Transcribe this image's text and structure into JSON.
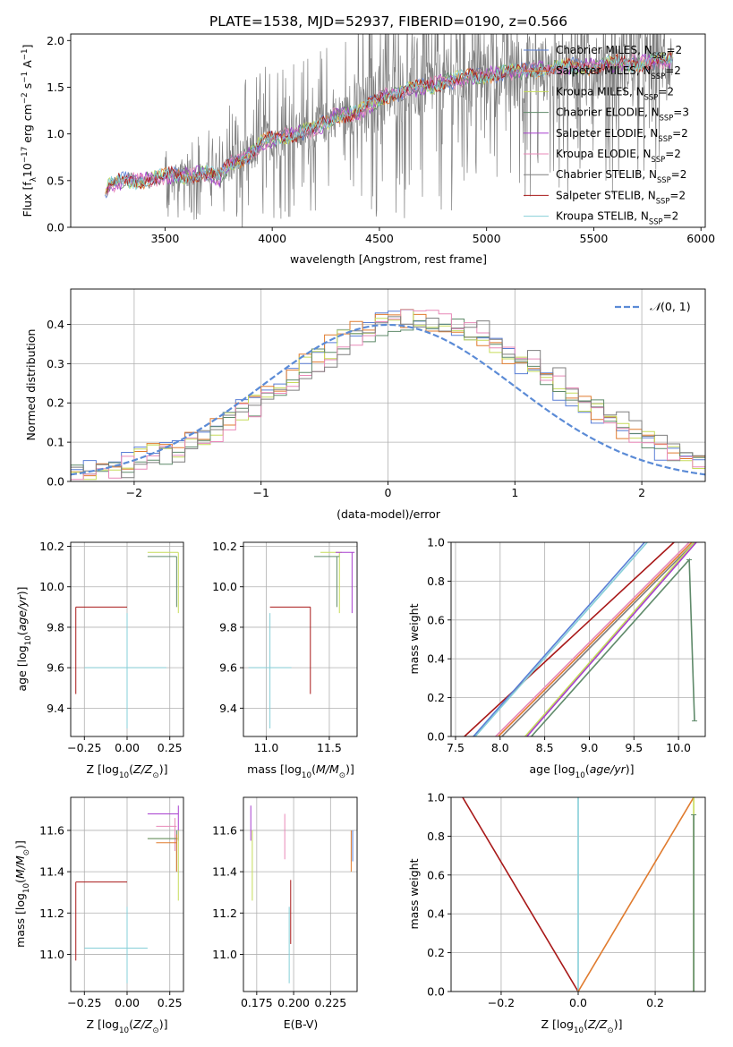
{
  "figure": {
    "title": "PLATE=1538, MJD=52937, FIBERID=0190, z=0.566"
  },
  "colors": {
    "chabrier_miles": "#5a7fd6",
    "salpeter_miles": "#e07b2e",
    "kroupa_miles": "#c6dc5a",
    "chabrier_elodie": "#5f8a6a",
    "salpeter_elodie": "#a83fcf",
    "kroupa_elodie": "#e889b8",
    "chabrier_stelib": "#7f7f7f",
    "salpeter_stelib": "#a81818",
    "kroupa_stelib": "#86cfd8",
    "gaussian": "#5b8bd6"
  },
  "chart_data": [
    {
      "id": "spectrum",
      "type": "line",
      "xlabel": "wavelength [Angstrom, rest frame]",
      "ylabel": "Flux [f_λ 10^-17 erg cm^-2 s^-1 A^-1]",
      "xlim": [
        3060,
        6020
      ],
      "ylim": [
        0,
        2.07
      ],
      "xticks": [
        3500,
        4000,
        4500,
        5000,
        5500,
        6000
      ],
      "yticks": [
        0.0,
        0.5,
        1.0,
        1.5,
        2.0
      ],
      "xtick_labels": [
        "3500",
        "4000",
        "4500",
        "5000",
        "5500",
        "6000"
      ],
      "ytick_labels": [
        "0.0",
        "0.5",
        "1.0",
        "1.5",
        "2.0"
      ],
      "grid": false,
      "legend_position": "top-right",
      "data_range": [
        3220,
        5870
      ],
      "model_continuum": {
        "x": [
          3220,
          3240,
          3300,
          3400,
          3450,
          3500,
          3600,
          3700,
          3750,
          3800,
          3900,
          3950,
          4000,
          4100,
          4200,
          4300,
          4400,
          4500,
          4600,
          4700,
          4800,
          4900,
          5000,
          5100,
          5200,
          5300,
          5400,
          5500,
          5600,
          5700,
          5800,
          5870
        ],
        "y": [
          0.33,
          0.45,
          0.5,
          0.5,
          0.52,
          0.55,
          0.56,
          0.58,
          0.52,
          0.68,
          0.78,
          0.9,
          0.95,
          1.0,
          1.05,
          1.2,
          1.22,
          1.38,
          1.45,
          1.5,
          1.55,
          1.6,
          1.63,
          1.66,
          1.68,
          1.7,
          1.72,
          1.72,
          1.75,
          1.76,
          1.78,
          1.8
        ]
      },
      "series": [
        {
          "name": "Chabrier MILES, N_SSP=2",
          "label": "Chabrier MILES, N",
          "sub": "SSP",
          "suffix": "=2",
          "color_key": "chabrier_miles"
        },
        {
          "name": "Salpeter MILES, N_SSP=2",
          "label": "Salpeter MILES, N",
          "sub": "SSP",
          "suffix": "=2",
          "color_key": "salpeter_miles"
        },
        {
          "name": "Kroupa MILES, N_SSP=2",
          "label": "Kroupa MILES, N",
          "sub": "SSP",
          "suffix": "=2",
          "color_key": "kroupa_miles"
        },
        {
          "name": "Chabrier ELODIE, N_SSP=3",
          "label": "Chabrier ELODIE, N",
          "sub": "SSP",
          "suffix": "=3",
          "color_key": "chabrier_elodie"
        },
        {
          "name": "Salpeter ELODIE, N_SSP=2",
          "label": "Salpeter ELODIE, N",
          "sub": "SSP",
          "suffix": "=2",
          "color_key": "salpeter_elodie"
        },
        {
          "name": "Kroupa ELODIE, N_SSP=2",
          "label": "Kroupa ELODIE, N",
          "sub": "SSP",
          "suffix": "=2",
          "color_key": "kroupa_elodie"
        },
        {
          "name": "Chabrier STELIB, N_SSP=2",
          "label": "Chabrier STELIB, N",
          "sub": "SSP",
          "suffix": "=2",
          "color_key": "chabrier_stelib"
        },
        {
          "name": "Salpeter STELIB, N_SSP=2",
          "label": "Salpeter STELIB, N",
          "sub": "SSP",
          "suffix": "=2",
          "color_key": "salpeter_stelib"
        },
        {
          "name": "Kroupa STELIB, N_SSP=2",
          "label": "Kroupa STELIB, N",
          "sub": "SSP",
          "suffix": "=2",
          "color_key": "kroupa_stelib"
        }
      ]
    },
    {
      "id": "residuals",
      "type": "line",
      "xlabel": "(data-model)/error",
      "ylabel": "Normed distribution",
      "xlim": [
        -2.5,
        2.5
      ],
      "ylim": [
        0,
        0.49
      ],
      "xticks": [
        -2,
        -1,
        0,
        1,
        2
      ],
      "yticks": [
        0.0,
        0.1,
        0.2,
        0.3,
        0.4
      ],
      "xtick_labels": [
        "−2",
        "−1",
        "0",
        "1",
        "2"
      ],
      "ytick_labels": [
        "0.0",
        "0.1",
        "0.2",
        "0.3",
        "0.4"
      ],
      "grid": true,
      "legend_position": "top-right",
      "bins": 50,
      "gaussian": {
        "name": "N(0,1)",
        "mean": 0,
        "sigma": 1,
        "label_main": "𝒩",
        "label_args": "(0, 1)"
      },
      "histogram_colors": [
        "chabrier_miles",
        "salpeter_miles",
        "kroupa_miles",
        "chabrier_elodie",
        "kroupa_elodie",
        "chabrier_stelib"
      ]
    },
    {
      "id": "z_vs_age",
      "type": "scatter",
      "xlabel": "Z [log10(Z/Z_sun)]",
      "ylabel": "age [log10(age/yr)]",
      "xlim": [
        -0.33,
        0.33
      ],
      "ylim": [
        9.26,
        10.22
      ],
      "xticks": [
        -0.25,
        0.0,
        0.25
      ],
      "yticks": [
        9.4,
        9.6,
        9.8,
        10.0,
        10.2
      ],
      "xtick_labels": [
        "−0.25",
        "0.00",
        "0.25"
      ],
      "ytick_labels": [
        "9.4",
        "9.6",
        "9.8",
        "10.0",
        "10.2"
      ],
      "grid": true,
      "errorbars": [
        {
          "color_key": "kroupa_stelib",
          "x0": -0.25,
          "x1": 0.23,
          "xc": 0.0,
          "y": 9.6,
          "y0": 9.3,
          "y1": 9.87
        },
        {
          "color_key": "salpeter_stelib",
          "x0": -0.3,
          "x1": 0.0,
          "xc": -0.3,
          "y": 9.9,
          "y0": 9.47,
          "y1": 9.9
        },
        {
          "color_key": "kroupa_miles",
          "x0": 0.12,
          "x1": 0.3,
          "xc": 0.3,
          "y": 10.17,
          "y0": 9.87,
          "y1": 10.17
        },
        {
          "color_key": "chabrier_elodie",
          "x0": 0.12,
          "x1": 0.29,
          "xc": 0.29,
          "y": 10.15,
          "y0": 9.9,
          "y1": 10.15
        }
      ]
    },
    {
      "id": "mass_vs_age",
      "type": "scatter",
      "xlabel": "mass [log10(M/M_sun)]",
      "ylabel": "",
      "xlim": [
        10.82,
        11.72
      ],
      "ylim": [
        9.26,
        10.22
      ],
      "xticks": [
        11.0,
        11.5
      ],
      "yticks": [
        9.4,
        9.6,
        9.8,
        10.0,
        10.2
      ],
      "xtick_labels": [
        "11.0",
        "11.5"
      ],
      "ytick_labels": [
        "9.4",
        "9.6",
        "9.8",
        "10.0",
        "10.2"
      ],
      "grid": true,
      "errorbars": [
        {
          "color_key": "kroupa_stelib",
          "x0": 10.86,
          "x1": 11.2,
          "xc": 11.03,
          "y": 9.6,
          "y0": 9.3,
          "y1": 9.87
        },
        {
          "color_key": "salpeter_stelib",
          "x0": 11.03,
          "x1": 11.35,
          "xc": 11.35,
          "y": 9.9,
          "y0": 9.47,
          "y1": 9.9
        },
        {
          "color_key": "kroupa_miles",
          "x0": 11.43,
          "x1": 11.6,
          "xc": 11.58,
          "y": 10.17,
          "y0": 9.87,
          "y1": 10.17
        },
        {
          "color_key": "chabrier_elodie",
          "x0": 11.38,
          "x1": 11.58,
          "xc": 11.56,
          "y": 10.15,
          "y0": 9.9,
          "y1": 10.15
        },
        {
          "color_key": "salpeter_elodie",
          "x0": 11.55,
          "x1": 11.7,
          "xc": 11.68,
          "y": 10.17,
          "y0": 9.87,
          "y1": 10.17
        }
      ]
    },
    {
      "id": "age_vs_massweight",
      "type": "line",
      "xlabel": "age [log10(age/yr)]",
      "ylabel": "mass weight",
      "xlim": [
        7.45,
        10.3
      ],
      "ylim": [
        0.0,
        1.0
      ],
      "xticks": [
        7.5,
        8.0,
        8.5,
        9.0,
        9.5,
        10.0
      ],
      "yticks": [
        0.0,
        0.2,
        0.4,
        0.6,
        0.8,
        1.0
      ],
      "xtick_labels": [
        "7.5",
        "8.0",
        "8.5",
        "9.0",
        "9.5",
        "10.0"
      ],
      "ytick_labels": [
        "0.0",
        "0.2",
        "0.4",
        "0.6",
        "0.8",
        "1.0"
      ],
      "grid": true,
      "lines": [
        {
          "color_key": "salpeter_stelib",
          "x": [
            7.6,
            9.95
          ],
          "y": [
            0.0,
            1.0
          ]
        },
        {
          "color_key": "kroupa_stelib",
          "x": [
            7.72,
            9.65
          ],
          "y": [
            0.0,
            1.0
          ]
        },
        {
          "color_key": "chabrier_miles",
          "x": [
            7.7,
            9.62
          ],
          "y": [
            0.0,
            1.0
          ]
        },
        {
          "color_key": "salpeter_miles",
          "x": [
            7.98,
            10.15
          ],
          "y": [
            0.0,
            1.0
          ]
        },
        {
          "color_key": "kroupa_elodie",
          "x": [
            7.95,
            10.12
          ],
          "y": [
            0.0,
            1.0
          ]
        },
        {
          "color_key": "chabrier_stelib",
          "x": [
            8.02,
            10.18
          ],
          "y": [
            0.0,
            1.0
          ]
        },
        {
          "color_key": "kroupa_miles",
          "x": [
            8.28,
            10.18
          ],
          "y": [
            0.0,
            1.0
          ]
        },
        {
          "color_key": "salpeter_elodie",
          "x": [
            8.3,
            10.2
          ],
          "y": [
            0.0,
            1.0
          ]
        },
        {
          "color_key": "chabrier_elodie",
          "x": [
            8.35,
            10.12,
            10.18
          ],
          "y": [
            0.0,
            0.91,
            0.08
          ]
        }
      ]
    },
    {
      "id": "z_vs_mass",
      "type": "scatter",
      "xlabel": "Z [log10(Z/Z_sun)]",
      "ylabel": "mass [log10(M/M_sun)]",
      "xlim": [
        -0.33,
        0.33
      ],
      "ylim": [
        10.82,
        11.76
      ],
      "xticks": [
        -0.25,
        0.0,
        0.25
      ],
      "yticks": [
        11.0,
        11.2,
        11.4,
        11.6
      ],
      "xtick_labels": [
        "−0.25",
        "0.00",
        "0.25"
      ],
      "ytick_labels": [
        "11.0",
        "11.2",
        "11.4",
        "11.6"
      ],
      "grid": true,
      "errorbars": [
        {
          "color_key": "kroupa_stelib",
          "x0": -0.25,
          "x1": 0.12,
          "xc": 0.0,
          "y": 11.03,
          "y0": 10.86,
          "y1": 11.23
        },
        {
          "color_key": "salpeter_stelib",
          "x0": -0.3,
          "x1": 0.0,
          "xc": -0.3,
          "y": 11.35,
          "y0": 10.97,
          "y1": 11.35
        },
        {
          "color_key": "salpeter_elodie",
          "x0": 0.12,
          "x1": 0.3,
          "xc": 0.3,
          "y": 11.68,
          "y0": 11.55,
          "y1": 11.72
        },
        {
          "color_key": "kroupa_elodie",
          "x0": 0.17,
          "x1": 0.29,
          "xc": 0.28,
          "y": 11.62,
          "y0": 11.5,
          "y1": 11.66
        },
        {
          "color_key": "kroupa_miles",
          "x0": 0.12,
          "x1": 0.3,
          "xc": 0.3,
          "y": 11.56,
          "y0": 11.26,
          "y1": 11.6
        },
        {
          "color_key": "chabrier_elodie",
          "x0": 0.12,
          "x1": 0.29,
          "xc": 0.29,
          "y": 11.56,
          "y0": 11.4,
          "y1": 11.6
        },
        {
          "color_key": "salpeter_miles",
          "x0": 0.17,
          "x1": 0.29,
          "xc": 0.29,
          "y": 11.54,
          "y0": 11.4,
          "y1": 11.58
        }
      ]
    },
    {
      "id": "ebv_vs_mass",
      "type": "scatter",
      "xlabel": "E(B-V)",
      "ylabel": "",
      "xlim": [
        0.166,
        0.243
      ],
      "ylim": [
        10.82,
        11.76
      ],
      "xticks": [
        0.175,
        0.2,
        0.225
      ],
      "yticks": [
        11.0,
        11.2,
        11.4,
        11.6
      ],
      "xtick_labels": [
        "0.175",
        "0.200",
        "0.225"
      ],
      "ytick_labels": [
        "11.0",
        "11.2",
        "11.4",
        "11.6"
      ],
      "grid": true,
      "errorbars": [
        {
          "color_key": "salpeter_elodie",
          "x0": 0.171,
          "x1": 0.171,
          "xc": 0.171,
          "y": 11.68,
          "y0": 11.55,
          "y1": 11.72
        },
        {
          "color_key": "kroupa_miles",
          "x0": 0.172,
          "x1": 0.172,
          "xc": 0.172,
          "y": 11.5,
          "y0": 11.26,
          "y1": 11.6
        },
        {
          "color_key": "kroupa_elodie",
          "x0": 0.194,
          "x1": 0.194,
          "xc": 0.194,
          "y": 11.6,
          "y0": 11.46,
          "y1": 11.68
        },
        {
          "color_key": "salpeter_stelib",
          "x0": 0.198,
          "x1": 0.198,
          "xc": 0.198,
          "y": 11.2,
          "y0": 11.05,
          "y1": 11.36
        },
        {
          "color_key": "kroupa_stelib",
          "x0": 0.197,
          "x1": 0.197,
          "xc": 0.197,
          "y": 11.03,
          "y0": 10.86,
          "y1": 11.23
        },
        {
          "color_key": "salpeter_miles",
          "x0": 0.239,
          "x1": 0.239,
          "xc": 0.239,
          "y": 11.5,
          "y0": 11.4,
          "y1": 11.6
        },
        {
          "color_key": "chabrier_miles",
          "x0": 0.24,
          "x1": 0.24,
          "xc": 0.24,
          "y": 11.55,
          "y0": 11.45,
          "y1": 11.6
        }
      ]
    },
    {
      "id": "z_vs_massweight",
      "type": "line",
      "xlabel": "Z [log10(Z/Z_sun)]",
      "ylabel": "mass weight",
      "xlim": [
        -0.33,
        0.33
      ],
      "ylim": [
        0.0,
        1.0
      ],
      "xticks": [
        -0.2,
        0.0,
        0.2
      ],
      "yticks": [
        0.0,
        0.2,
        0.4,
        0.6,
        0.8,
        1.0
      ],
      "xtick_labels": [
        "−0.2",
        "0.0",
        "0.2"
      ],
      "ytick_labels": [
        "0.0",
        "0.2",
        "0.4",
        "0.6",
        "0.8",
        "1.0"
      ],
      "grid": true,
      "lines": [
        {
          "color_key": "salpeter_stelib",
          "x": [
            -0.3,
            0.0
          ],
          "y": [
            1.0,
            0.0
          ]
        },
        {
          "color_key": "kroupa_stelib",
          "x": [
            0.0,
            0.0
          ],
          "y": [
            0.0,
            1.0
          ]
        },
        {
          "color_key": "salpeter_miles",
          "x": [
            0.0,
            0.3
          ],
          "y": [
            0.0,
            1.0
          ]
        },
        {
          "color_key": "kroupa_miles",
          "x": [
            0.3,
            0.3
          ],
          "y": [
            0.0,
            1.0
          ]
        },
        {
          "color_key": "chabrier_elodie",
          "x": [
            0.3,
            0.3
          ],
          "y": [
            0.0,
            0.91
          ]
        }
      ]
    }
  ]
}
